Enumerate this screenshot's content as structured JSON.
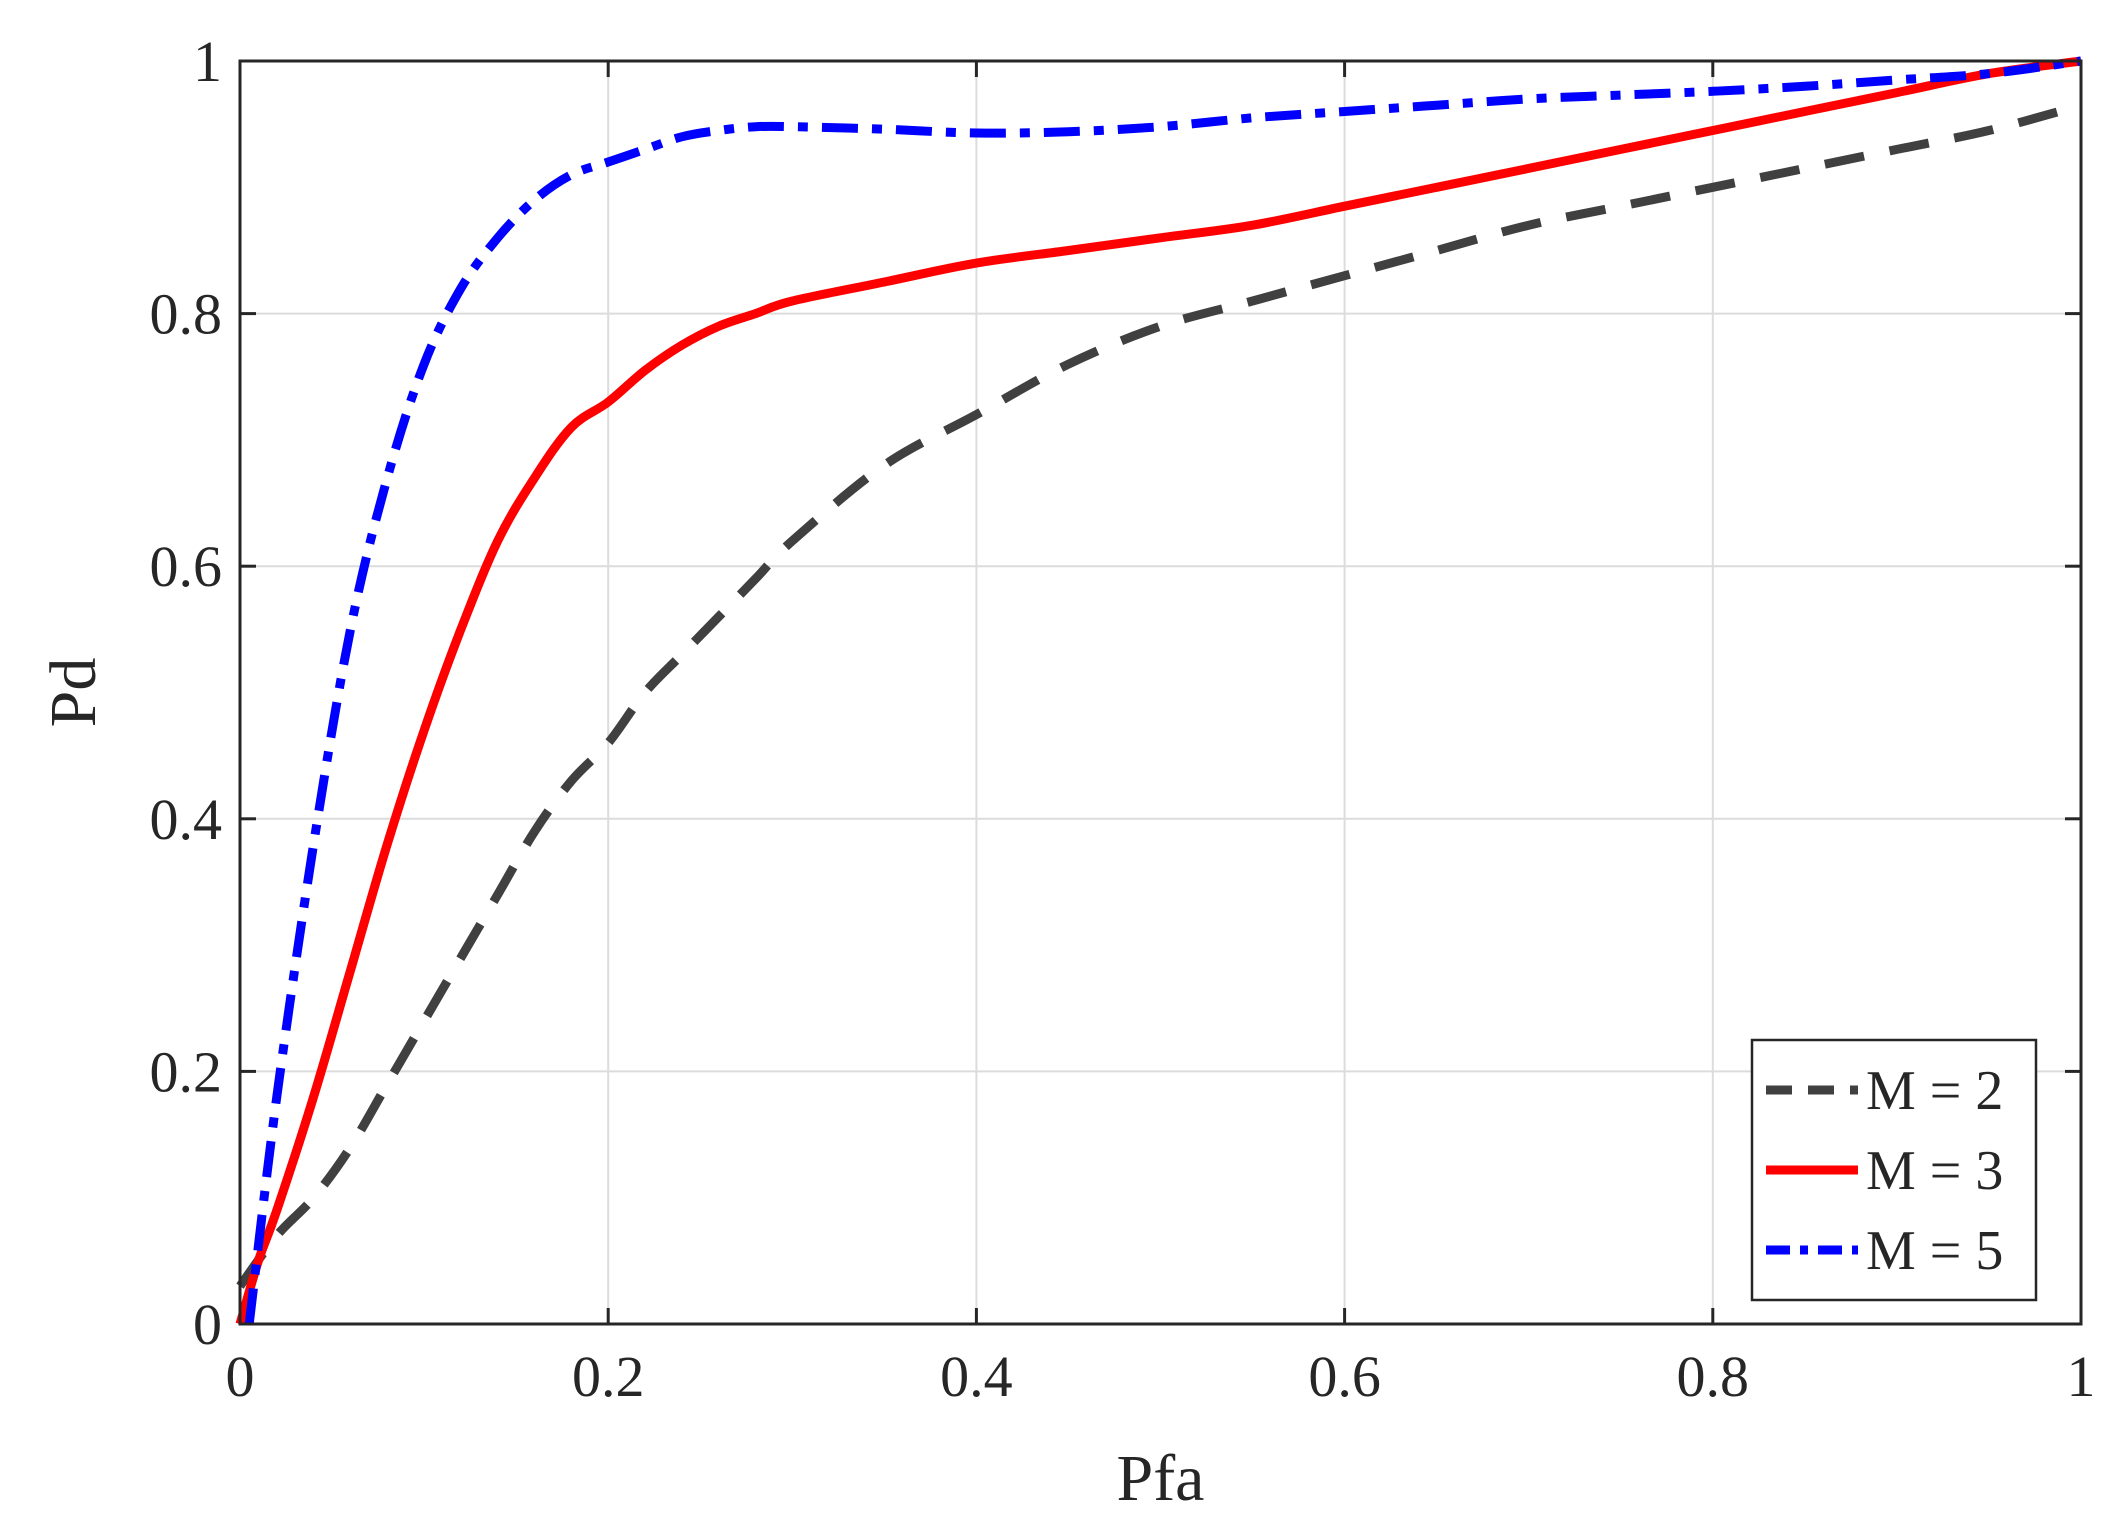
{
  "chart_data": {
    "type": "line",
    "title": "",
    "xlabel": "Pfa",
    "ylabel": "Pd",
    "xlim": [
      0,
      1
    ],
    "ylim": [
      0,
      1
    ],
    "xticks": [
      "0",
      "0.2",
      "0.4",
      "0.6",
      "0.8",
      "1"
    ],
    "yticks": [
      "0",
      "0.2",
      "0.4",
      "0.6",
      "0.8",
      "1"
    ],
    "grid": true,
    "legend_position": "bottom-right",
    "series": [
      {
        "name": "M = 2",
        "color": "#404040",
        "style": "dashed",
        "x": [
          0,
          0.02,
          0.04,
          0.06,
          0.08,
          0.1,
          0.12,
          0.14,
          0.16,
          0.18,
          0.2,
          0.22,
          0.24,
          0.26,
          0.28,
          0.3,
          0.35,
          0.4,
          0.45,
          0.5,
          0.55,
          0.6,
          0.65,
          0.7,
          0.75,
          0.8,
          0.85,
          0.9,
          0.95,
          1.0
        ],
        "y": [
          0.03,
          0.07,
          0.1,
          0.14,
          0.19,
          0.24,
          0.29,
          0.34,
          0.39,
          0.43,
          0.46,
          0.5,
          0.53,
          0.56,
          0.59,
          0.62,
          0.68,
          0.72,
          0.76,
          0.79,
          0.81,
          0.83,
          0.85,
          0.87,
          0.885,
          0.9,
          0.915,
          0.93,
          0.945,
          0.965
        ]
      },
      {
        "name": "M = 3",
        "color": "#ff0000",
        "style": "solid",
        "x": [
          0,
          0.01,
          0.02,
          0.04,
          0.06,
          0.08,
          0.1,
          0.12,
          0.14,
          0.16,
          0.18,
          0.2,
          0.22,
          0.24,
          0.26,
          0.28,
          0.3,
          0.35,
          0.4,
          0.45,
          0.5,
          0.55,
          0.6,
          0.65,
          0.7,
          0.75,
          0.8,
          0.85,
          0.9,
          0.95,
          1.0
        ],
        "y": [
          0,
          0.05,
          0.09,
          0.18,
          0.28,
          0.38,
          0.47,
          0.55,
          0.62,
          0.67,
          0.71,
          0.73,
          0.755,
          0.775,
          0.79,
          0.8,
          0.81,
          0.825,
          0.84,
          0.85,
          0.86,
          0.87,
          0.885,
          0.9,
          0.915,
          0.93,
          0.945,
          0.96,
          0.975,
          0.99,
          1.0
        ]
      },
      {
        "name": "M = 5",
        "color": "#0000ff",
        "style": "dashdot",
        "x": [
          0.005,
          0.02,
          0.04,
          0.06,
          0.08,
          0.1,
          0.12,
          0.14,
          0.16,
          0.18,
          0.2,
          0.22,
          0.24,
          0.26,
          0.28,
          0.3,
          0.35,
          0.4,
          0.45,
          0.5,
          0.55,
          0.6,
          0.65,
          0.7,
          0.75,
          0.8,
          0.85,
          0.9,
          0.95,
          1.0
        ],
        "y": [
          0,
          0.18,
          0.38,
          0.55,
          0.67,
          0.76,
          0.82,
          0.86,
          0.89,
          0.91,
          0.92,
          0.93,
          0.94,
          0.945,
          0.948,
          0.948,
          0.946,
          0.943,
          0.944,
          0.948,
          0.955,
          0.96,
          0.965,
          0.97,
          0.973,
          0.976,
          0.98,
          0.985,
          0.99,
          1.0
        ]
      }
    ]
  }
}
